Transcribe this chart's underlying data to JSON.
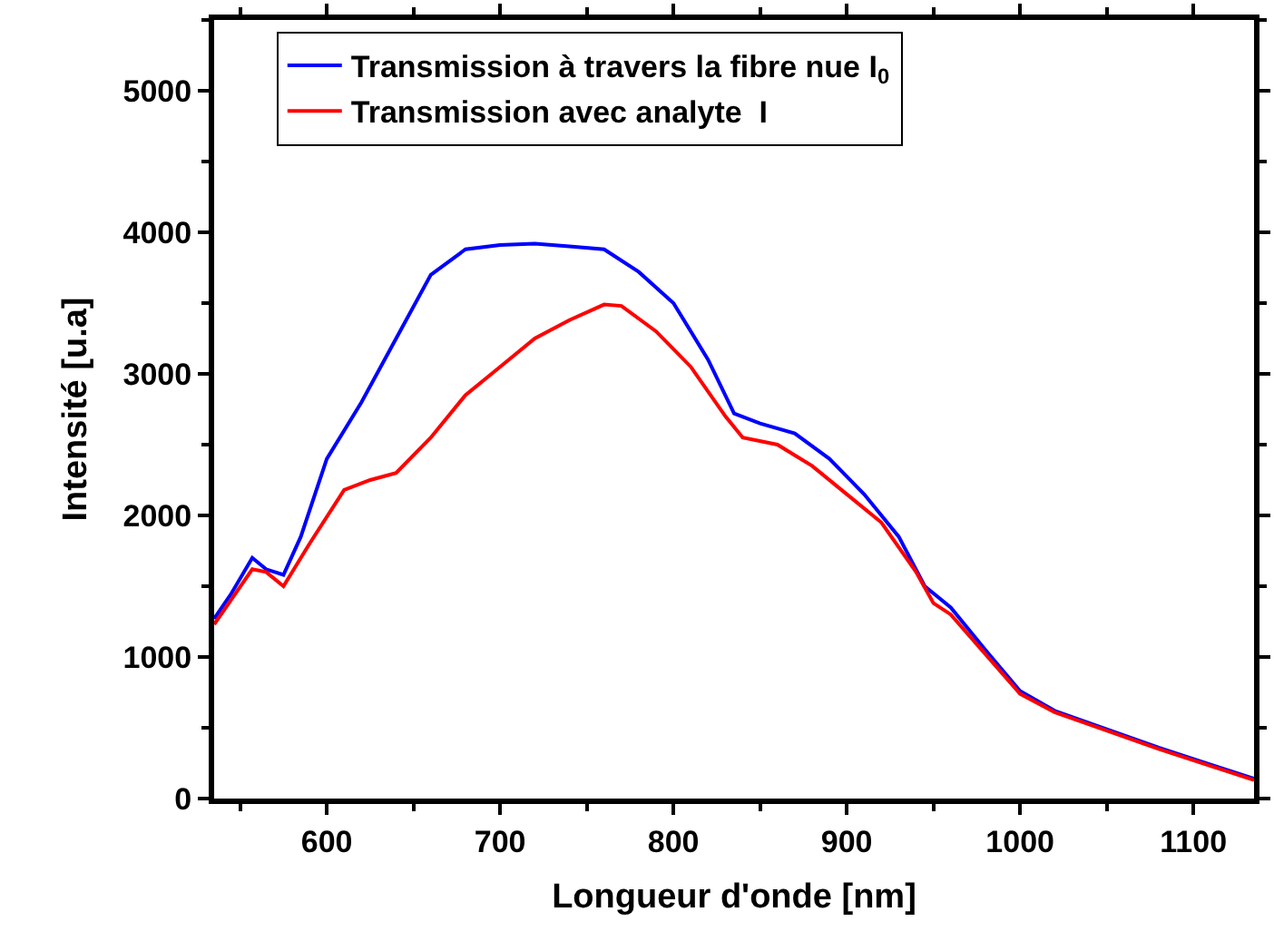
{
  "chart_data": {
    "type": "line",
    "xlabel": "Longueur d'onde [nm]",
    "ylabel": "Intensité [u.a]",
    "xlim": [
      535,
      1135
    ],
    "xticks": [
      600,
      700,
      800,
      900,
      1000,
      1100
    ],
    "ylim": [
      0,
      5500
    ],
    "yticks": [
      0,
      1000,
      2000,
      3000,
      4000,
      5000
    ],
    "legend": "top",
    "marker": "none",
    "line_style": "solid",
    "series": [
      {
        "name": "Transmission à travers la fibre nue I$_{0}$",
        "color": "#0000ff",
        "x": [
          535,
          545,
          557,
          565,
          575,
          585,
          600,
          620,
          640,
          660,
          680,
          700,
          720,
          740,
          760,
          780,
          800,
          820,
          835,
          850,
          870,
          890,
          910,
          930,
          945,
          960,
          980,
          1000,
          1020,
          1050,
          1080,
          1110,
          1135
        ],
        "values": [
          1270,
          1450,
          1700,
          1620,
          1580,
          1850,
          2400,
          2800,
          3250,
          3700,
          3880,
          3910,
          3920,
          3900,
          3880,
          3720,
          3500,
          3100,
          2720,
          2650,
          2580,
          2400,
          2150,
          1850,
          1500,
          1350,
          1050,
          760,
          620,
          490,
          360,
          240,
          140
        ]
      },
      {
        "name": "Transmission avec analyte  I",
        "color": "#ff0000",
        "x": [
          535,
          557,
          565,
          575,
          590,
          610,
          625,
          640,
          660,
          680,
          700,
          720,
          740,
          760,
          770,
          790,
          810,
          830,
          840,
          860,
          880,
          900,
          920,
          940,
          950,
          960,
          980,
          1000,
          1020,
          1050,
          1080,
          1110,
          1135
        ],
        "values": [
          1230,
          1620,
          1600,
          1500,
          1800,
          2180,
          2250,
          2300,
          2550,
          2850,
          3050,
          3250,
          3380,
          3490,
          3480,
          3300,
          3050,
          2700,
          2550,
          2500,
          2350,
          2150,
          1950,
          1600,
          1380,
          1300,
          1020,
          740,
          610,
          480,
          350,
          230,
          130
        ]
      }
    ]
  }
}
